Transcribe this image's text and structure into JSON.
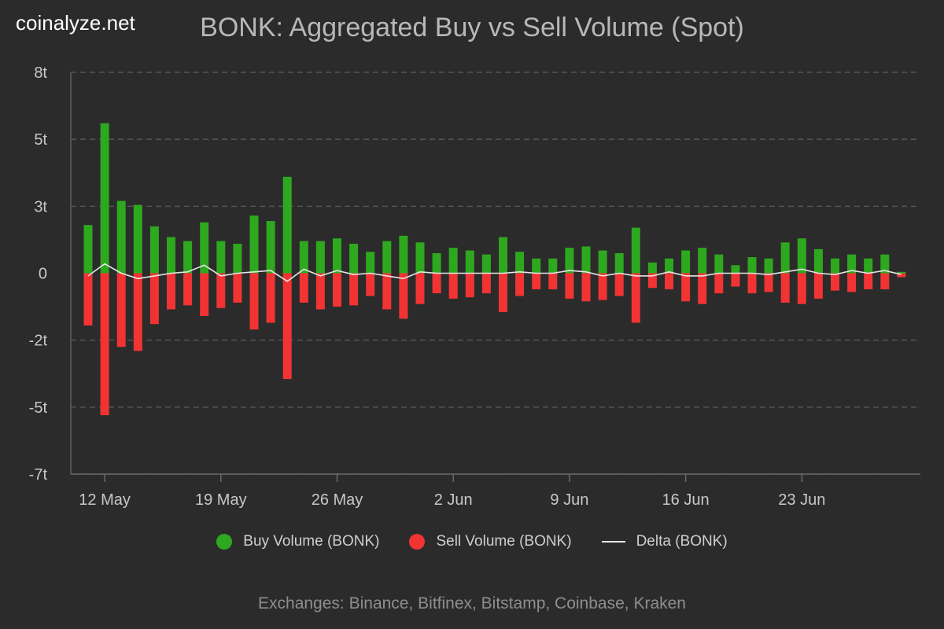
{
  "brand": "coinalyze.net",
  "title": "BONK: Aggregated Buy vs Sell Volume (Spot)",
  "footer": "Exchanges: Binance, Bitfinex, Bitstamp, Coinbase, Kraken",
  "colors": {
    "background": "#2b2b2b",
    "buy": "#2ea81f",
    "sell": "#f23333",
    "delta": "#e6e6e6",
    "grid": "#555555"
  },
  "legend": [
    {
      "label": "Buy Volume (BONK)",
      "color": "#2ea81f",
      "shape": "dot"
    },
    {
      "label": "Sell Volume (BONK)",
      "color": "#f23333",
      "shape": "dot"
    },
    {
      "label": "Delta (BONK)",
      "color": "#e6e6e6",
      "shape": "line"
    }
  ],
  "chart_data": {
    "type": "bar",
    "title": "BONK: Aggregated Buy vs Sell Volume (Spot)",
    "unit": "t",
    "ylim": [
      -7.5,
      7.5
    ],
    "y_ticks": [
      {
        "value": 7.5,
        "label": "8t"
      },
      {
        "value": 5,
        "label": "5t"
      },
      {
        "value": 2.5,
        "label": "3t"
      },
      {
        "value": 0,
        "label": "0"
      },
      {
        "value": -2.5,
        "label": "-2t"
      },
      {
        "value": -5,
        "label": "-5t"
      },
      {
        "value": -7.5,
        "label": "-7t"
      }
    ],
    "x_ticks": [
      {
        "index": 1,
        "label": "12 May"
      },
      {
        "index": 8,
        "label": "19 May"
      },
      {
        "index": 15,
        "label": "26 May"
      },
      {
        "index": 22,
        "label": "2 Jun"
      },
      {
        "index": 29,
        "label": "9 Jun"
      },
      {
        "index": 36,
        "label": "16 Jun"
      },
      {
        "index": 43,
        "label": "23 Jun"
      }
    ],
    "grid": true,
    "legend_position": "bottom",
    "categories": [
      "11 May",
      "12 May",
      "13 May",
      "14 May",
      "15 May",
      "16 May",
      "17 May",
      "18 May",
      "19 May",
      "20 May",
      "21 May",
      "22 May",
      "23 May",
      "24 May",
      "25 May",
      "26 May",
      "27 May",
      "28 May",
      "29 May",
      "30 May",
      "31 May",
      "1 Jun",
      "2 Jun",
      "3 Jun",
      "4 Jun",
      "5 Jun",
      "6 Jun",
      "7 Jun",
      "8 Jun",
      "9 Jun",
      "10 Jun",
      "11 Jun",
      "12 Jun",
      "13 Jun",
      "14 Jun",
      "15 Jun",
      "16 Jun",
      "17 Jun",
      "18 Jun",
      "19 Jun",
      "20 Jun",
      "21 Jun",
      "22 Jun",
      "23 Jun",
      "24 Jun",
      "25 Jun",
      "26 Jun",
      "27 Jun",
      "28 Jun",
      "29 Jun"
    ],
    "series": [
      {
        "name": "Buy Volume (BONK)",
        "values": [
          1.8,
          5.6,
          2.7,
          2.55,
          1.75,
          1.35,
          1.2,
          1.9,
          1.2,
          1.1,
          2.15,
          1.95,
          3.6,
          1.2,
          1.2,
          1.3,
          1.1,
          0.8,
          1.2,
          1.4,
          1.15,
          0.75,
          0.95,
          0.85,
          0.7,
          1.35,
          0.8,
          0.55,
          0.55,
          0.95,
          1.0,
          0.85,
          0.75,
          1.7,
          0.4,
          0.55,
          0.85,
          0.95,
          0.7,
          0.3,
          0.6,
          0.55,
          1.15,
          1.3,
          0.9,
          0.55,
          0.7,
          0.55,
          0.7,
          0.05
        ]
      },
      {
        "name": "Sell Volume (BONK)",
        "values": [
          -1.95,
          -5.3,
          -2.75,
          -2.9,
          -1.9,
          -1.35,
          -1.2,
          -1.6,
          -1.3,
          -1.1,
          -2.1,
          -1.85,
          -3.95,
          -1.1,
          -1.35,
          -1.25,
          -1.2,
          -0.85,
          -1.35,
          -1.7,
          -1.15,
          -0.75,
          -0.95,
          -0.9,
          -0.75,
          -1.45,
          -0.85,
          -0.6,
          -0.6,
          -0.95,
          -1.05,
          -1.0,
          -0.85,
          -1.85,
          -0.55,
          -0.6,
          -1.05,
          -1.15,
          -0.75,
          -0.5,
          -0.75,
          -0.7,
          -1.1,
          -1.15,
          -0.95,
          -0.65,
          -0.7,
          -0.6,
          -0.6,
          -0.15
        ]
      },
      {
        "name": "Delta (BONK)",
        "values": [
          -0.1,
          0.35,
          0.0,
          -0.2,
          -0.1,
          0.0,
          0.05,
          0.3,
          -0.1,
          0.0,
          0.05,
          0.1,
          -0.3,
          0.15,
          -0.1,
          0.1,
          -0.05,
          0.0,
          -0.1,
          -0.2,
          0.05,
          0.0,
          0.0,
          0.0,
          0.0,
          0.0,
          0.05,
          0.0,
          0.0,
          0.1,
          0.05,
          -0.1,
          0.0,
          -0.1,
          -0.1,
          0.05,
          -0.1,
          -0.1,
          0.0,
          0.0,
          0.0,
          -0.05,
          0.05,
          0.15,
          0.0,
          -0.05,
          0.1,
          0.0,
          0.1,
          -0.05
        ]
      }
    ]
  }
}
